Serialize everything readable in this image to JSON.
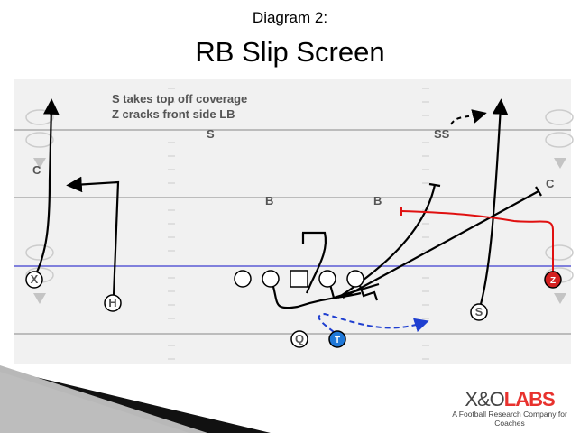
{
  "header": {
    "subtitle": "Diagram 2:",
    "title": "RB Slip Screen"
  },
  "notes": [
    "S takes top off coverage",
    "Z cracks front side LB"
  ],
  "defense": {
    "s": "S",
    "ss": "SS",
    "c_left": "C",
    "c_right": "C",
    "b_left": "B",
    "b_right": "B"
  },
  "offense": {
    "x": "X",
    "h": "H",
    "q": "Q",
    "t": "T",
    "s": "S",
    "z": "Z"
  },
  "colors": {
    "field": "#f1f1f1",
    "scrimmage": "#5b5bd6",
    "z": "#d42020",
    "t": "#1f78d8",
    "screen_route": "#1f3fd0",
    "crack_route": "#e01010"
  },
  "logo": {
    "name_part1": "X&O",
    "name_part2": "LABS",
    "tagline": "A Football Research Company for Coaches"
  }
}
